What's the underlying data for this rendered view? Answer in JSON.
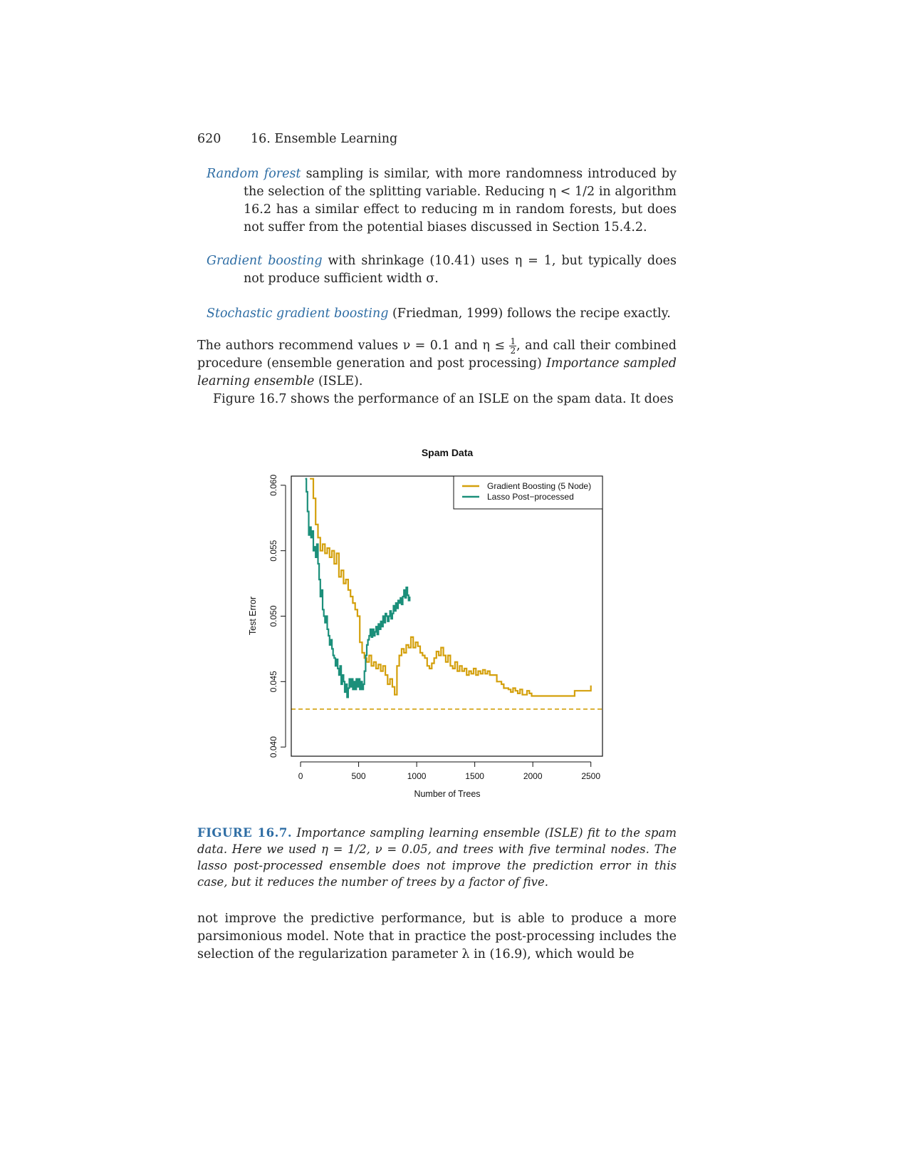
{
  "header": {
    "page_number": "620",
    "chapter": "16. Ensemble Learning"
  },
  "items": [
    {
      "term": "Random forest",
      "text": " sampling is similar, with more randomness introduced by the selection of the splitting variable. Reducing η < 1/2 in algorithm 16.2 has a similar effect to reducing m in random forests, but does not suffer from the potential biases discussed in Section 15.4.2."
    },
    {
      "term": "Gradient boosting",
      "text": " with shrinkage (10.41) uses η = 1, but typically does not produce sufficient width σ."
    },
    {
      "term": "Stochastic gradient boosting",
      "text": " (Friedman, 1999) follows the recipe exactly."
    }
  ],
  "para1": {
    "part1": "The authors recommend values ν = 0.1 and η ≤ ",
    "frac_num": "1",
    "frac_den": "2",
    "part2": ", and call their combined procedure (ensemble generation and post processing) ",
    "italic": "Importance sampled learning ensemble",
    "part3": " (ISLE)."
  },
  "para2": "Figure 16.7 shows the performance of an ISLE on the spam data. It does",
  "caption": {
    "label": "FIGURE 16.7.",
    "text": " Importance sampling learning ensemble (ISLE) fit to the spam data. Here we used η = 1/2, ν = 0.05, and trees with five terminal nodes. The lasso post-processed ensemble does not improve the prediction error in this case, but it reduces the number of trees by a factor of five."
  },
  "para3": "not improve the predictive performance, but is able to produce a more parsimonious model. Note that in practice the post-processing includes the selection of the regularization parameter λ in (16.9), which would be",
  "chart_data": {
    "type": "line",
    "title": "Spam Data",
    "xlabel": "Number of Trees",
    "ylabel": "Test Error",
    "xlim": [
      -80,
      2600
    ],
    "ylim": [
      0.0393,
      0.0607
    ],
    "xticks": [
      0,
      500,
      1000,
      1500,
      2000,
      2500
    ],
    "xtick_labels": [
      "0",
      "500",
      "1000",
      "1500",
      "2000",
      "2500"
    ],
    "yticks": [
      0.04,
      0.045,
      0.05,
      0.055,
      0.06
    ],
    "ytick_labels": [
      "0.040",
      "0.045",
      "0.050",
      "0.055",
      "0.060"
    ],
    "legend_position": "top-right",
    "grid": false,
    "series": [
      {
        "name": "Gradient Boosting (5 Node)",
        "color": "#d4a00c",
        "x": [
          80,
          110,
          130,
          150,
          170,
          190,
          210,
          230,
          250,
          270,
          290,
          310,
          330,
          350,
          370,
          390,
          410,
          430,
          450,
          470,
          490,
          510,
          530,
          550,
          570,
          590,
          610,
          630,
          650,
          670,
          690,
          710,
          730,
          750,
          770,
          790,
          810,
          830,
          850,
          870,
          890,
          910,
          930,
          950,
          970,
          990,
          1010,
          1030,
          1050,
          1070,
          1090,
          1110,
          1130,
          1150,
          1170,
          1190,
          1210,
          1230,
          1250,
          1270,
          1290,
          1310,
          1330,
          1350,
          1370,
          1390,
          1410,
          1430,
          1450,
          1470,
          1490,
          1510,
          1530,
          1550,
          1570,
          1590,
          1610,
          1630,
          1650,
          1670,
          1690,
          1710,
          1730,
          1750,
          1770,
          1790,
          1810,
          1830,
          1850,
          1870,
          1890,
          1910,
          1930,
          1950,
          1970,
          1990,
          2010,
          2030,
          2050,
          2070,
          2090,
          2110,
          2140,
          2170,
          2200,
          2230,
          2260,
          2290,
          2330,
          2360,
          2390,
          2420,
          2450,
          2480,
          2500
        ],
        "y": [
          0.0605,
          0.059,
          0.057,
          0.056,
          0.055,
          0.0555,
          0.0548,
          0.0552,
          0.0545,
          0.055,
          0.054,
          0.0548,
          0.053,
          0.0535,
          0.0525,
          0.0528,
          0.052,
          0.0515,
          0.051,
          0.0505,
          0.05,
          0.048,
          0.0472,
          0.0468,
          0.0465,
          0.047,
          0.0462,
          0.0465,
          0.046,
          0.0463,
          0.0458,
          0.0462,
          0.0455,
          0.0448,
          0.0452,
          0.0446,
          0.044,
          0.0462,
          0.047,
          0.0475,
          0.0472,
          0.0478,
          0.0476,
          0.0484,
          0.0476,
          0.048,
          0.0477,
          0.0472,
          0.047,
          0.0468,
          0.0462,
          0.046,
          0.0464,
          0.0468,
          0.0473,
          0.047,
          0.0476,
          0.047,
          0.0465,
          0.047,
          0.0462,
          0.046,
          0.0465,
          0.0458,
          0.0462,
          0.0458,
          0.046,
          0.0455,
          0.0458,
          0.0456,
          0.046,
          0.0455,
          0.0458,
          0.0456,
          0.0459,
          0.0456,
          0.0458,
          0.0455,
          0.0455,
          0.0455,
          0.045,
          0.045,
          0.0448,
          0.0445,
          0.0445,
          0.0444,
          0.0442,
          0.0445,
          0.0443,
          0.0441,
          0.0444,
          0.044,
          0.044,
          0.0443,
          0.0441,
          0.0439,
          0.0439,
          0.0439,
          0.0439,
          0.0439,
          0.0439,
          0.0439,
          0.0439,
          0.0439,
          0.0439,
          0.0439,
          0.0439,
          0.0439,
          0.0439,
          0.0443,
          0.0443,
          0.0443,
          0.0443,
          0.0443,
          0.0447
        ]
      },
      {
        "name": "Lasso Post−processed",
        "color": "#1b8f7a",
        "x": [
          40,
          50,
          60,
          70,
          80,
          90,
          100,
          110,
          120,
          130,
          140,
          150,
          160,
          170,
          180,
          190,
          200,
          210,
          220,
          230,
          240,
          250,
          260,
          270,
          280,
          290,
          300,
          310,
          320,
          330,
          340,
          350,
          360,
          370,
          380,
          390,
          400,
          410,
          420,
          430,
          440,
          450,
          460,
          470,
          480,
          490,
          500,
          510,
          520,
          530,
          540,
          550,
          560,
          570,
          580,
          590,
          600,
          610,
          620,
          630,
          640,
          650,
          660,
          670,
          680,
          690,
          700,
          710,
          720,
          730,
          740,
          750,
          760,
          770,
          780,
          790,
          800,
          810,
          820,
          830,
          840,
          850,
          860,
          870,
          880,
          890,
          900,
          910,
          920,
          930,
          940
        ],
        "y": [
          0.0605,
          0.0595,
          0.058,
          0.0562,
          0.0568,
          0.056,
          0.0565,
          0.055,
          0.0553,
          0.0545,
          0.0555,
          0.054,
          0.0528,
          0.0515,
          0.052,
          0.0505,
          0.05,
          0.0495,
          0.05,
          0.049,
          0.0485,
          0.0478,
          0.0482,
          0.0475,
          0.047,
          0.0468,
          0.0462,
          0.0467,
          0.046,
          0.0455,
          0.0462,
          0.0448,
          0.0455,
          0.045,
          0.0442,
          0.0448,
          0.0438,
          0.0445,
          0.0452,
          0.0446,
          0.0452,
          0.0444,
          0.045,
          0.0444,
          0.0452,
          0.0446,
          0.0452,
          0.0444,
          0.045,
          0.0444,
          0.0448,
          0.0458,
          0.047,
          0.0478,
          0.0482,
          0.0485,
          0.049,
          0.0484,
          0.049,
          0.0485,
          0.0488,
          0.0492,
          0.0486,
          0.0494,
          0.049,
          0.0496,
          0.0492,
          0.05,
          0.0495,
          0.0502,
          0.05,
          0.0496,
          0.05,
          0.0504,
          0.0498,
          0.0502,
          0.0508,
          0.0504,
          0.051,
          0.0506,
          0.0512,
          0.051,
          0.0514,
          0.0509,
          0.0515,
          0.052,
          0.0514,
          0.0522,
          0.0516,
          0.0512,
          0.0515
        ]
      }
    ],
    "reference_line": {
      "y": 0.0429,
      "color": "#d4a00c",
      "style": "dashed"
    }
  }
}
